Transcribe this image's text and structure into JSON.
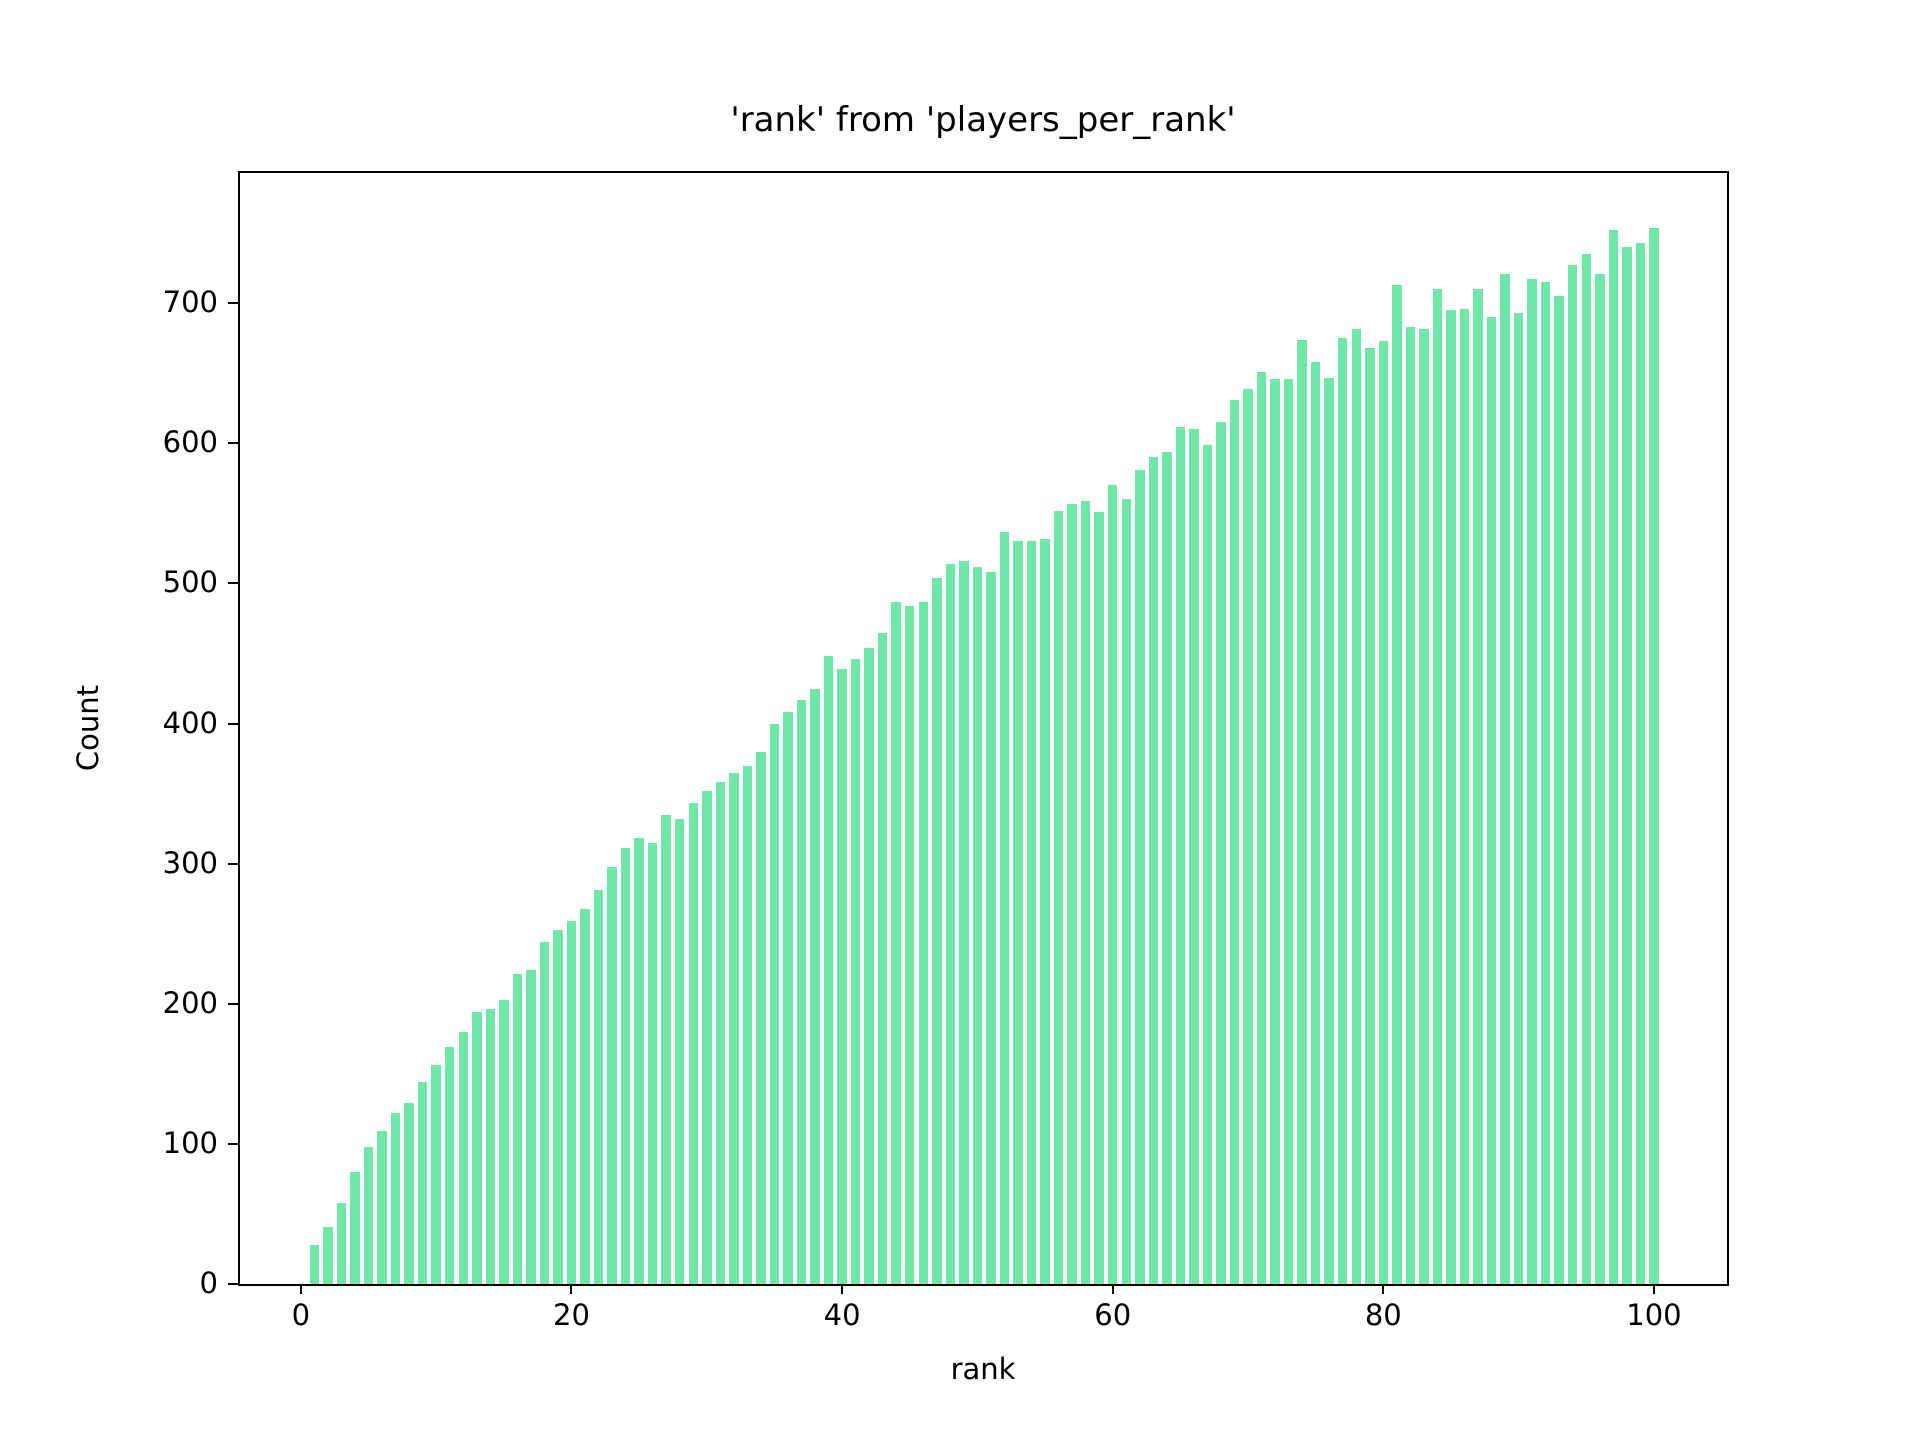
{
  "chart_data": {
    "type": "bar",
    "title": "'rank' from 'players_per_rank'",
    "xlabel": "rank",
    "ylabel": "Count",
    "bar_color": "#6ee7a8",
    "axis_color": "#000000",
    "background": "#ffffff",
    "grid": false,
    "legend": false,
    "xlim": [
      -4.5,
      105.4
    ],
    "ylim": [
      0,
      793
    ],
    "xticks": [
      0,
      20,
      40,
      60,
      80,
      100
    ],
    "yticks": [
      0,
      100,
      200,
      300,
      400,
      500,
      600,
      700
    ],
    "bar_width_ratio": 0.7,
    "x": [
      1,
      2,
      3,
      4,
      5,
      6,
      7,
      8,
      9,
      10,
      11,
      12,
      13,
      14,
      15,
      16,
      17,
      18,
      19,
      20,
      21,
      22,
      23,
      24,
      25,
      26,
      27,
      28,
      29,
      30,
      31,
      32,
      33,
      34,
      35,
      36,
      37,
      38,
      39,
      40,
      41,
      42,
      43,
      44,
      45,
      46,
      47,
      48,
      49,
      50,
      51,
      52,
      53,
      54,
      55,
      56,
      57,
      58,
      59,
      60,
      61,
      62,
      63,
      64,
      65,
      66,
      67,
      68,
      69,
      70,
      71,
      72,
      73,
      74,
      75,
      76,
      77,
      78,
      79,
      80,
      81,
      82,
      83,
      84,
      85,
      86,
      87,
      88,
      89,
      90,
      91,
      92,
      93,
      94,
      95,
      96,
      97,
      98,
      99,
      100
    ],
    "values": [
      28,
      41,
      58,
      80,
      98,
      109,
      122,
      129,
      144,
      156,
      169,
      180,
      194,
      196,
      203,
      221,
      224,
      244,
      253,
      259,
      268,
      281,
      298,
      311,
      318,
      315,
      335,
      332,
      343,
      352,
      358,
      365,
      370,
      380,
      400,
      408,
      417,
      425,
      448,
      439,
      446,
      454,
      465,
      487,
      484,
      487,
      504,
      514,
      516,
      512,
      508,
      537,
      530,
      530,
      532,
      552,
      557,
      559,
      551,
      570,
      560,
      581,
      590,
      594,
      612,
      610,
      599,
      615,
      631,
      639,
      651,
      646,
      646,
      674,
      658,
      647,
      675,
      682,
      668,
      673,
      713,
      683,
      682,
      710,
      695,
      696,
      710,
      690,
      721,
      693,
      717,
      715,
      705,
      727,
      735,
      721,
      752,
      740,
      743,
      754
    ]
  }
}
